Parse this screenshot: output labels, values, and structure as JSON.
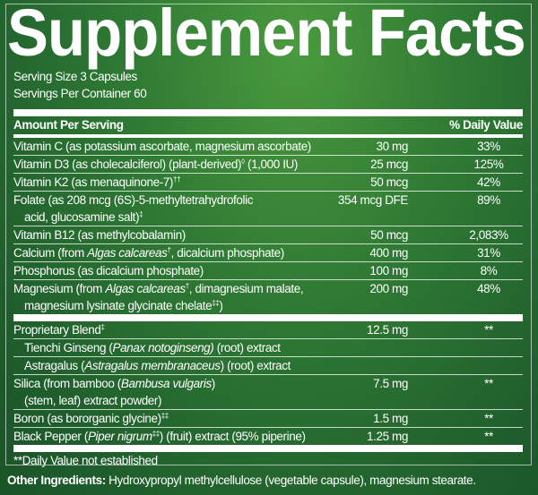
{
  "title": "Supplement Facts",
  "serving_size": "Serving Size 3 Capsules",
  "servings_per_container": "Servings Per Container 60",
  "header": {
    "amount": "Amount Per Serving",
    "dv": "% Daily Value"
  },
  "rows": [
    {
      "name": "Vitamin C (as potassium ascorbate, magnesium ascorbate)",
      "amount": "30 mg",
      "dv": "33%"
    },
    {
      "name": "Vitamin D3 (as cholecalciferol) (plant-derived)",
      "sup": "◊",
      "name_b": " (1,000 IU)",
      "amount": "25 mcg",
      "dv": "125%"
    },
    {
      "name": "Vitamin K2 (as menaquinone-7)",
      "sup": "††",
      "amount": "50 mcg",
      "dv": "42%"
    },
    {
      "name": "Folate (as 208 mcg (6S)-5-methyltetrahydrofolic",
      "line2": "acid, glucosamine salt)",
      "sup": "‡",
      "amount": "354 mcg DFE",
      "dv": "89%"
    },
    {
      "name": "Vitamin B12 (as methylcobalamin)",
      "amount": "50 mcg",
      "dv": "2,083%"
    },
    {
      "name": "Calcium (from ",
      "italic": "Algas calcareas",
      "sup": "†",
      "name_b": ", dicalcium phosphate)",
      "amount": "400 mg",
      "dv": "31%"
    },
    {
      "name": "Phosphorus (as dicalcium phosphate)",
      "amount": "100 mg",
      "dv": "8%"
    },
    {
      "name": "Magnesium (from ",
      "italic": "Algas calcareas",
      "sup": "†",
      "name_b": ", dimagnesium malate,",
      "line2": "magnesium lysinate glycinate chelate",
      "sup2": "‡‡",
      "line2_end": ")",
      "amount": "200 mg",
      "dv": "48%"
    }
  ],
  "rows2": [
    {
      "name": "Proprietary Blend",
      "sup": "‡",
      "amount": "12.5 mg",
      "dv": "**"
    },
    {
      "name": "Tienchi Ginseng (",
      "italic": "Panax notoginseng)",
      "name_b": " (root) extract"
    },
    {
      "name": "Astragalus (",
      "italic": "Astragalus membranaceus",
      "name_b": ") (root) extract"
    },
    {
      "name": "Silica (from bamboo (",
      "italic": "Bambusa vulgaris",
      "name_b": ")",
      "line2": "(stem, leaf) extract powder)",
      "amount": "7.5 mg",
      "dv": "**"
    },
    {
      "name": "Boron (as bororganic glycine)",
      "sup": "‡‡",
      "amount": "1.5 mg",
      "dv": "**"
    },
    {
      "name": "Black Pepper (",
      "italic": "Piper nigrum",
      "name_b": ") (fruit) extract (95% piperine)",
      "sup": "‡‡",
      "amount": "1.25 mg",
      "dv": "**"
    }
  ],
  "footnote": "**Daily Value not established",
  "other_ingredients": {
    "label": "Other Ingredients:",
    "text": " Hydroxypropyl methylcellulose (vegetable capsule), magnesium stearate."
  },
  "colors": {
    "background": "#2f7a34",
    "text": "#ffffff"
  }
}
